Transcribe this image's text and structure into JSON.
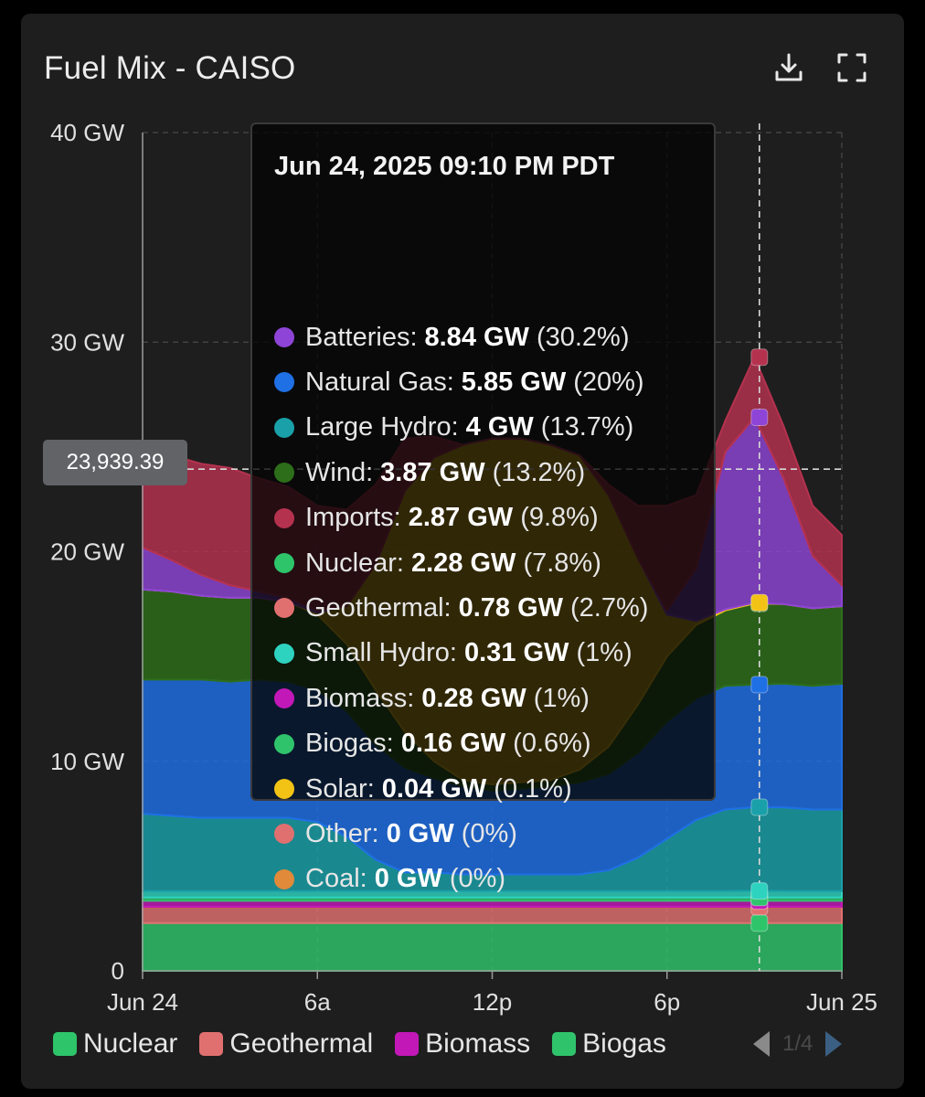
{
  "title": "Fuel Mix - CAISO",
  "icons": {
    "download": "download-icon",
    "fullscreen": "fullscreen-icon"
  },
  "crosshair_value": "23,939.39",
  "tooltip": {
    "title": "Jun 24, 2025 09:10 PM PDT",
    "rows": [
      {
        "name": "Batteries",
        "value": "8.84 GW",
        "pct": "(30.2%)",
        "color": "#8e44d6"
      },
      {
        "name": "Natural Gas",
        "value": "5.85 GW",
        "pct": "(20%)",
        "color": "#1f6fe5"
      },
      {
        "name": "Large Hydro",
        "value": "4 GW",
        "pct": "(13.7%)",
        "color": "#1aa0a8"
      },
      {
        "name": "Wind",
        "value": "3.87 GW",
        "pct": "(13.2%)",
        "color": "#2d6e1a"
      },
      {
        "name": "Imports",
        "value": "2.87 GW",
        "pct": "(9.8%)",
        "color": "#b5324f"
      },
      {
        "name": "Nuclear",
        "value": "2.28 GW",
        "pct": "(7.8%)",
        "color": "#2ec46a"
      },
      {
        "name": "Geothermal",
        "value": "0.78 GW",
        "pct": "(2.7%)",
        "color": "#e07070"
      },
      {
        "name": "Small Hydro",
        "value": "0.31 GW",
        "pct": "(1%)",
        "color": "#2ed3c0"
      },
      {
        "name": "Biomass",
        "value": "0.28 GW",
        "pct": "(1%)",
        "color": "#c218b8"
      },
      {
        "name": "Biogas",
        "value": "0.16 GW",
        "pct": "(0.6%)",
        "color": "#2fc46c"
      },
      {
        "name": "Solar",
        "value": "0.04 GW",
        "pct": "(0.1%)",
        "color": "#f2c315"
      },
      {
        "name": "Other",
        "value": "0 GW",
        "pct": "(0%)",
        "color": "#e07070"
      },
      {
        "name": "Coal",
        "value": "0 GW",
        "pct": "(0%)",
        "color": "#e08a3a"
      }
    ]
  },
  "legend": {
    "items": [
      {
        "label": "Nuclear",
        "color": "#2ec46a"
      },
      {
        "label": "Geothermal",
        "color": "#e07070"
      },
      {
        "label": "Biomass",
        "color": "#c218b8"
      },
      {
        "label": "Biogas",
        "color": "#2fc46c"
      }
    ],
    "page": "1/4"
  },
  "chart_data": {
    "type": "area",
    "stacked": true,
    "y_tick_labels": [
      "0",
      "10 GW",
      "20 GW",
      "30 GW",
      "40 GW"
    ],
    "ylim": [
      0,
      40
    ],
    "x_tick_labels": [
      "Jun 24",
      "6a",
      "12p",
      "6p",
      "Jun 25"
    ],
    "x_tick_hours": [
      0,
      6,
      12,
      18,
      24
    ],
    "xlim_hours": [
      0,
      24
    ],
    "grid": true,
    "crosshair_hour": 21.17,
    "x_hours": [
      0,
      1,
      2,
      3,
      4,
      5,
      6,
      7,
      8,
      9,
      10,
      11,
      12,
      13,
      14,
      15,
      16,
      17,
      18,
      19,
      20,
      21,
      22,
      23,
      24
    ],
    "series": [
      {
        "name": "Nuclear",
        "color": "#2ec46a",
        "values": [
          2.28,
          2.28,
          2.28,
          2.28,
          2.28,
          2.28,
          2.28,
          2.28,
          2.28,
          2.28,
          2.28,
          2.28,
          2.28,
          2.28,
          2.28,
          2.28,
          2.28,
          2.28,
          2.28,
          2.28,
          2.28,
          2.28,
          2.28,
          2.28,
          2.28
        ]
      },
      {
        "name": "Geothermal",
        "color": "#e07070",
        "values": [
          0.78,
          0.78,
          0.78,
          0.78,
          0.78,
          0.78,
          0.78,
          0.78,
          0.78,
          0.78,
          0.78,
          0.78,
          0.78,
          0.78,
          0.78,
          0.78,
          0.78,
          0.78,
          0.78,
          0.78,
          0.78,
          0.78,
          0.78,
          0.78,
          0.78
        ]
      },
      {
        "name": "Biomass",
        "color": "#c218b8",
        "values": [
          0.28,
          0.28,
          0.28,
          0.28,
          0.28,
          0.28,
          0.28,
          0.28,
          0.28,
          0.28,
          0.28,
          0.28,
          0.28,
          0.28,
          0.28,
          0.28,
          0.28,
          0.28,
          0.28,
          0.28,
          0.28,
          0.28,
          0.28,
          0.28,
          0.28
        ]
      },
      {
        "name": "Biogas",
        "color": "#2fc46c",
        "values": [
          0.16,
          0.16,
          0.16,
          0.16,
          0.16,
          0.16,
          0.16,
          0.16,
          0.16,
          0.16,
          0.16,
          0.16,
          0.16,
          0.16,
          0.16,
          0.16,
          0.16,
          0.16,
          0.16,
          0.16,
          0.16,
          0.16,
          0.16,
          0.16,
          0.16
        ]
      },
      {
        "name": "Small Hydro",
        "color": "#2ed3c0",
        "values": [
          0.3,
          0.3,
          0.3,
          0.3,
          0.3,
          0.3,
          0.3,
          0.3,
          0.3,
          0.3,
          0.3,
          0.3,
          0.3,
          0.3,
          0.3,
          0.3,
          0.3,
          0.3,
          0.3,
          0.3,
          0.3,
          0.31,
          0.3,
          0.3,
          0.3
        ]
      },
      {
        "name": "Large Hydro",
        "color": "#1aa0a8",
        "values": [
          3.7,
          3.6,
          3.5,
          3.5,
          3.5,
          3.5,
          3.3,
          2.6,
          1.5,
          0.9,
          0.9,
          0.8,
          0.8,
          0.8,
          0.8,
          0.8,
          1.0,
          1.6,
          2.5,
          3.4,
          3.9,
          4.0,
          4.0,
          3.9,
          3.9
        ]
      },
      {
        "name": "Natural Gas",
        "color": "#1f6fe5",
        "values": [
          6.4,
          6.5,
          6.6,
          6.5,
          6.6,
          6.5,
          6.3,
          6.0,
          5.5,
          5.0,
          4.5,
          4.2,
          4.0,
          4.1,
          4.2,
          4.4,
          4.6,
          5.0,
          5.6,
          5.8,
          5.9,
          5.85,
          5.9,
          5.9,
          6.0
        ]
      },
      {
        "name": "Wind",
        "color": "#2d6e1a",
        "values": [
          4.3,
          4.2,
          4.0,
          4.0,
          3.9,
          3.8,
          3.6,
          3.2,
          2.6,
          1.7,
          0.8,
          0.3,
          0.3,
          0.3,
          0.3,
          0.6,
          1.3,
          2.3,
          3.1,
          3.5,
          3.6,
          3.87,
          3.8,
          3.7,
          3.7
        ]
      },
      {
        "name": "Solar",
        "color": "#f2c315",
        "values": [
          0,
          0,
          0,
          0,
          0,
          0,
          0.1,
          1.8,
          6.0,
          11.5,
          14.5,
          16.0,
          16.5,
          16.4,
          16.0,
          15.0,
          12.0,
          7.0,
          2.0,
          0.2,
          0.05,
          0.04,
          0,
          0,
          0
        ]
      },
      {
        "name": "Batteries",
        "color": "#8e44d6",
        "values": [
          2.0,
          1.5,
          1.0,
          0.6,
          0.3,
          0.2,
          0.1,
          0,
          0,
          0,
          0,
          0,
          0,
          0,
          0,
          0,
          0,
          0,
          0.2,
          2.5,
          7.5,
          8.84,
          6.0,
          2.5,
          1.0
        ]
      },
      {
        "name": "Imports",
        "color": "#b5324f",
        "values": [
          4.3,
          5.0,
          5.3,
          5.6,
          5.4,
          5.3,
          5.0,
          4.6,
          3.8,
          2.5,
          1.0,
          0,
          0,
          0,
          0,
          0,
          0.5,
          2.5,
          5.0,
          3.5,
          1.5,
          2.87,
          2.5,
          2.4,
          2.4
        ]
      }
    ]
  }
}
